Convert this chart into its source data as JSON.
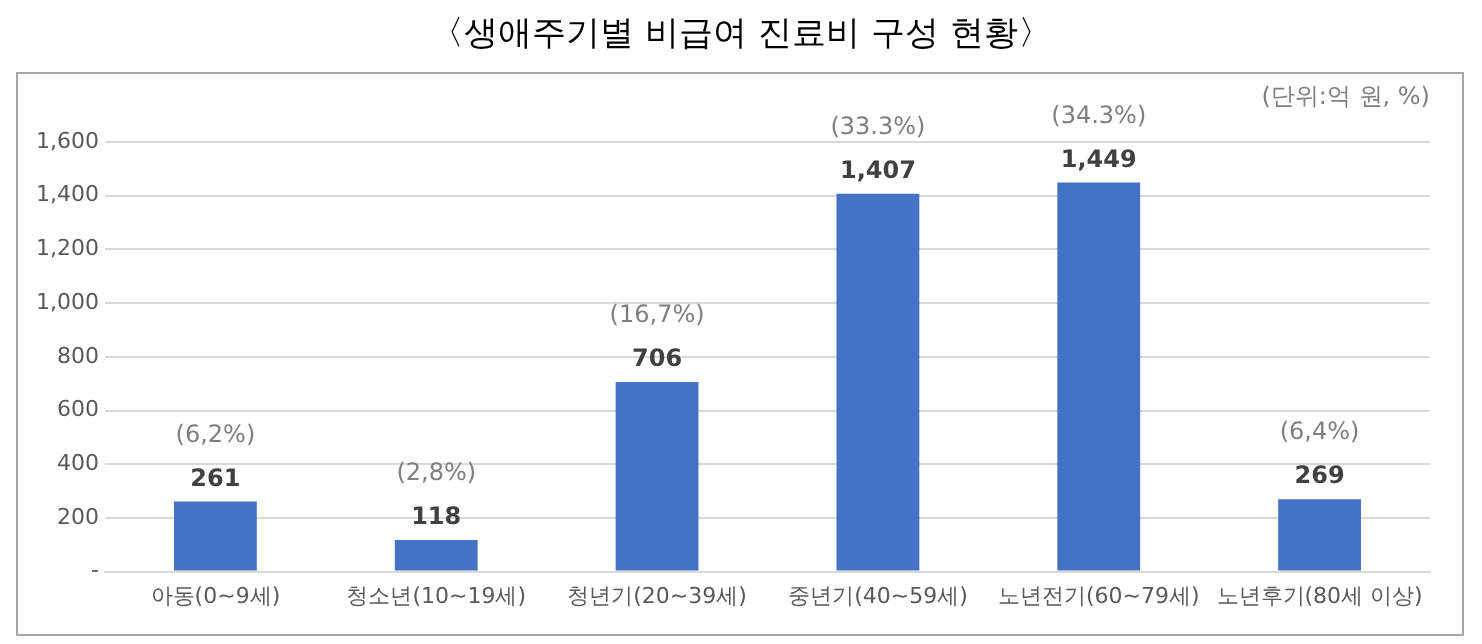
{
  "chart_data": {
    "type": "bar",
    "title": "〈생애주기별 비급여 진료비 구성 현황〉",
    "categories": [
      "아동(0~9세)",
      "청소년(10~19세)",
      "청년기(20~39세)",
      "중년기(40~59세)",
      "노년전기(60~79세)",
      "노년후기(80세 이상)"
    ],
    "values": [
      261,
      118,
      706,
      1407,
      1449,
      269
    ],
    "value_labels": [
      "261",
      "118",
      "706",
      "1,407",
      "1,449",
      "269"
    ],
    "color": "#4472c4",
    "ylim": [
      0,
      1600
    ],
    "yticks": [
      {
        "value": 0,
        "label": "-"
      },
      {
        "value": 200,
        "label": "200"
      },
      {
        "value": 400,
        "label": "400"
      },
      {
        "value": 600,
        "label": "600"
      },
      {
        "value": 800,
        "label": "800"
      },
      {
        "value": 1000,
        "label": "1,000"
      },
      {
        "value": 1200,
        "label": "1,200"
      },
      {
        "value": 1400,
        "label": "1,400"
      },
      {
        "value": 1600,
        "label": "1,600"
      }
    ],
    "grid": "y",
    "annotations": [
      "(단위:억 원, %)",
      {
        "text": "(6,2%)",
        "x": "아동(0~9세)",
        "y": 261
      },
      {
        "text": "(2,8%)",
        "x": "청소년(10~19세)",
        "y": 118
      },
      {
        "text": "(16,7%)",
        "x": "청년기(20~39세)",
        "y": 706
      },
      {
        "text": "(33.3%)",
        "x": "중년기(40~59세)",
        "y": 1407
      },
      {
        "text": "(34.3%)",
        "x": "노년전기(60~79세)",
        "y": 1449
      },
      {
        "text": "(6,4%)",
        "x": "노년후기(80세 이상)",
        "y": 269
      }
    ]
  }
}
